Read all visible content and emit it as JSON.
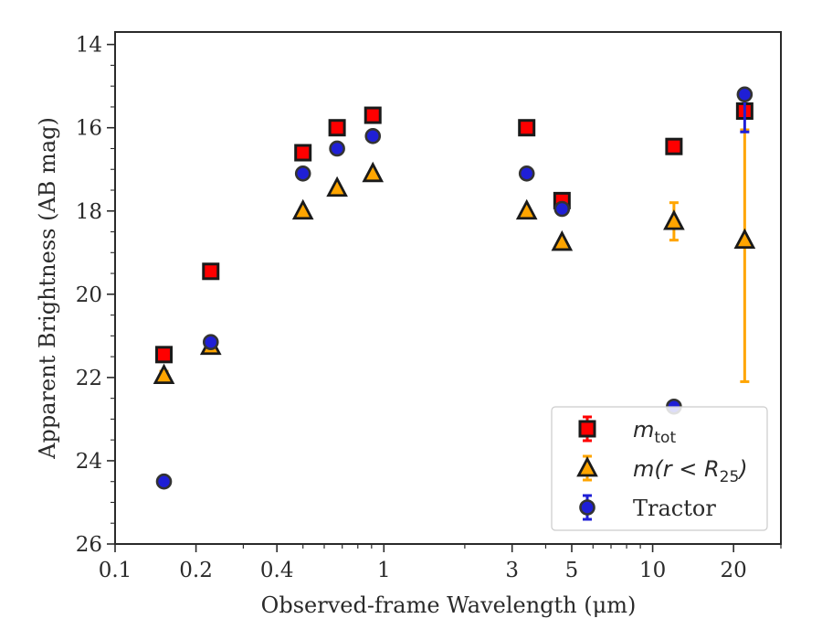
{
  "chart_data": {
    "type": "scatter",
    "title": "",
    "xlabel": "Observed-frame Wavelength (μm)",
    "ylabel": "Apparent Brightness (AB mag)",
    "xscale": "log",
    "xlim": [
      0.1,
      30
    ],
    "ylim": [
      26,
      13.7
    ],
    "y_inverted": true,
    "x_ticks": [
      0.1,
      0.2,
      0.4,
      1,
      3,
      5,
      10,
      20
    ],
    "x_tick_labels": [
      "0.1",
      "0.2",
      "0.4",
      "1",
      "3",
      "5",
      "10",
      "20"
    ],
    "y_ticks": [
      14,
      16,
      18,
      20,
      22,
      24,
      26
    ],
    "y_tick_labels": [
      "14",
      "16",
      "18",
      "20",
      "22",
      "24",
      "26"
    ],
    "grid": false,
    "legend_position": "lower right",
    "series": [
      {
        "name": "m_tot",
        "legend_main": "m",
        "legend_sub": "tot",
        "marker": "square",
        "color": "#ff0000",
        "edge_color": "#1a1a1a",
        "points": [
          {
            "x": 0.152,
            "y": 21.45
          },
          {
            "x": 0.227,
            "y": 19.45
          },
          {
            "x": 0.5,
            "y": 16.6
          },
          {
            "x": 0.67,
            "y": 16.0
          },
          {
            "x": 0.91,
            "y": 15.7
          },
          {
            "x": 3.4,
            "y": 16.0
          },
          {
            "x": 4.6,
            "y": 17.75
          },
          {
            "x": 12.0,
            "y": 16.45
          },
          {
            "x": 22.0,
            "y": 15.6
          }
        ]
      },
      {
        "name": "m(r < R_25)",
        "legend_main": "m(r < R",
        "legend_sub": "25",
        "legend_end": ")",
        "marker": "triangle",
        "color": "#ffa500",
        "edge_color": "#1a1a1a",
        "points": [
          {
            "x": 0.152,
            "y": 21.95,
            "err": 0.1
          },
          {
            "x": 0.227,
            "y": 21.25,
            "err": 0.1
          },
          {
            "x": 0.5,
            "y": 18.0
          },
          {
            "x": 0.67,
            "y": 17.45
          },
          {
            "x": 0.91,
            "y": 17.1
          },
          {
            "x": 3.4,
            "y": 18.0
          },
          {
            "x": 4.6,
            "y": 18.75
          },
          {
            "x": 12.0,
            "y": 18.25,
            "err_low": 0.45,
            "err_high": 0.45
          },
          {
            "x": 22.0,
            "y": 18.7,
            "err_low": 2.65,
            "err_high": 3.4
          }
        ]
      },
      {
        "name": "Tractor",
        "marker": "circle",
        "color": "#1f1fd6",
        "edge_color": "#333333",
        "points": [
          {
            "x": 0.152,
            "y": 24.5
          },
          {
            "x": 0.227,
            "y": 21.15
          },
          {
            "x": 0.5,
            "y": 17.1
          },
          {
            "x": 0.67,
            "y": 16.5
          },
          {
            "x": 0.91,
            "y": 16.2
          },
          {
            "x": 3.4,
            "y": 17.1
          },
          {
            "x": 4.6,
            "y": 17.95
          },
          {
            "x": 12.0,
            "y": 22.7
          },
          {
            "x": 22.0,
            "y": 15.2,
            "err_low": 0.05,
            "err_high": 0.9
          }
        ]
      }
    ]
  }
}
